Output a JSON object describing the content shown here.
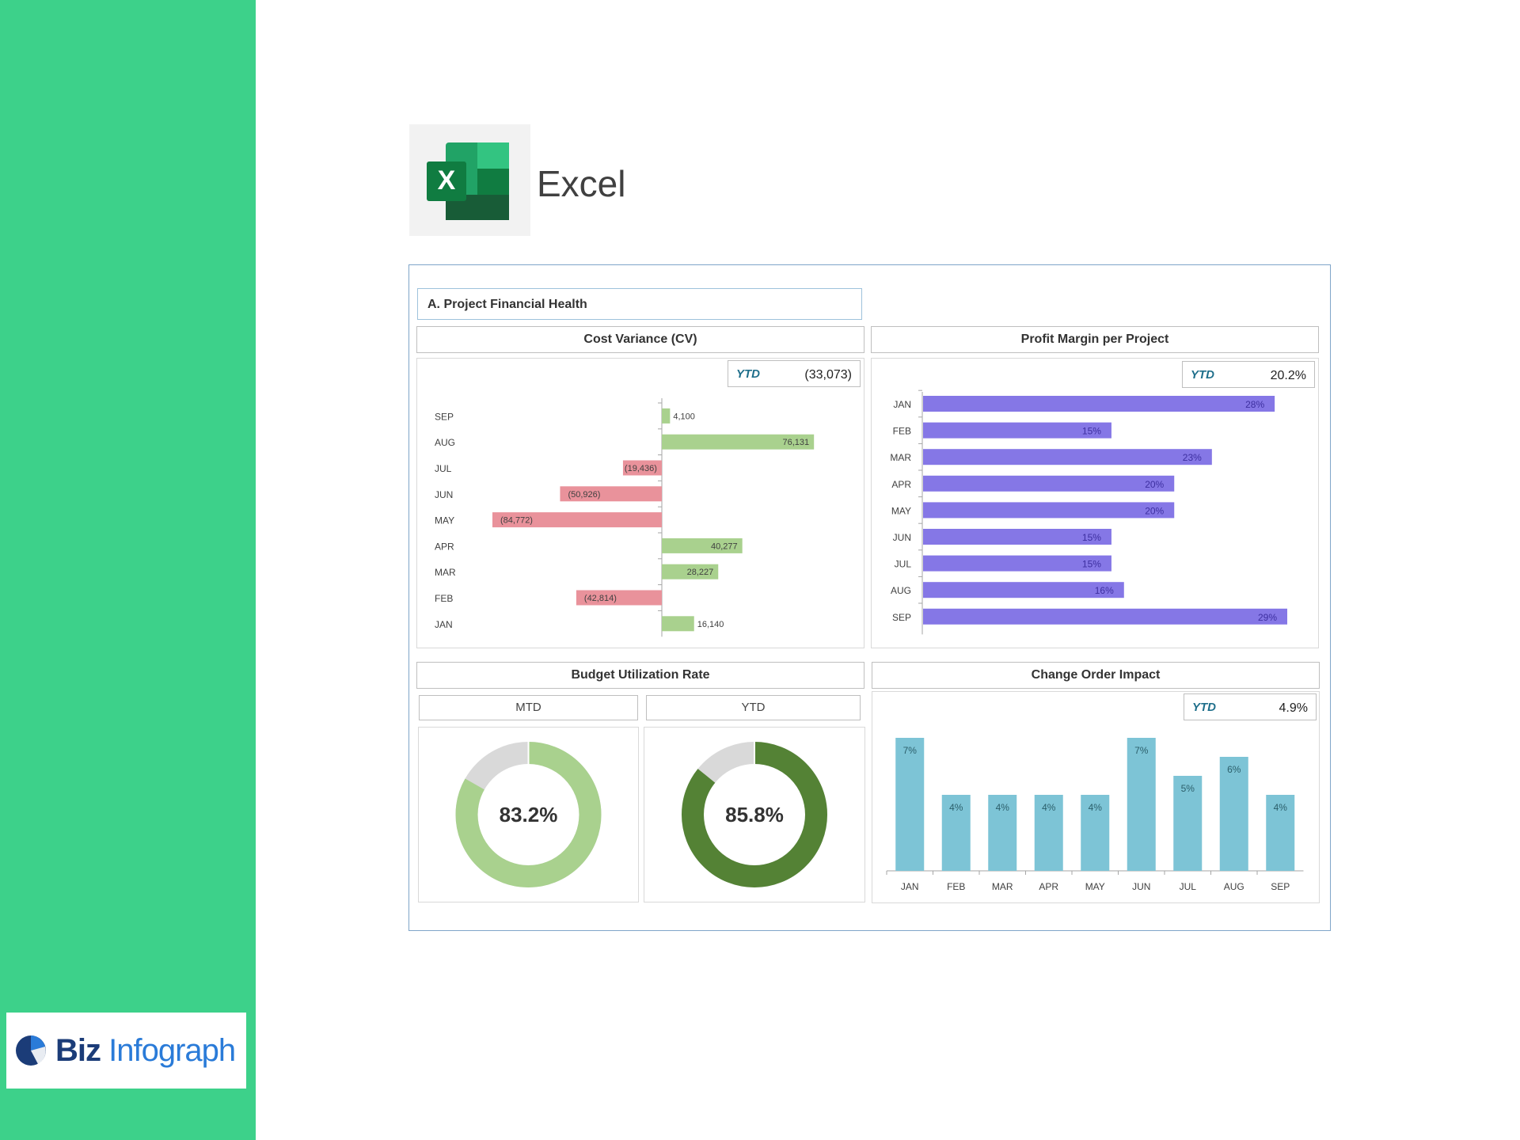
{
  "brand": {
    "name_part1": "Biz",
    "name_part2": "Infograph"
  },
  "app": {
    "logo_letter": "X",
    "name": "Excel"
  },
  "dashboard": {
    "section_title": "A. Project Financial Health",
    "cost_variance": {
      "title": "Cost Variance (CV)",
      "ytd_label": "YTD",
      "ytd_value": "(33,073)"
    },
    "profit_margin": {
      "title": "Profit Margin per Project",
      "ytd_label": "YTD",
      "ytd_value": "20.2%"
    },
    "budget_utilization": {
      "title": "Budget Utilization Rate",
      "mtd_label": "MTD",
      "ytd_label": "YTD",
      "mtd_value": "83.2%",
      "ytd_value": "85.8%"
    },
    "change_order": {
      "title": "Change Order Impact",
      "ytd_label": "YTD",
      "ytd_value": "4.9%"
    }
  },
  "colors": {
    "positive": "#a9d18e",
    "negative": "#e9929b",
    "purple": "#8577e6",
    "teal": "#7dc4d6",
    "donut_light": "#a9d18e",
    "donut_dark": "#548235",
    "donut_rest": "#d9d9d9"
  },
  "chart_data": [
    {
      "type": "bar",
      "orientation": "horizontal",
      "title": "Cost Variance (CV)",
      "categories": [
        "SEP",
        "AUG",
        "JUL",
        "JUN",
        "MAY",
        "APR",
        "MAR",
        "FEB",
        "JAN"
      ],
      "values": [
        4100,
        76131,
        -19436,
        -50926,
        -84772,
        40277,
        28227,
        -42814,
        16140
      ],
      "labels": [
        "4,100",
        "76,131",
        "(19,436)",
        "(50,926)",
        "(84,772)",
        "40,277",
        "28,227",
        "(42,814)",
        "16,140"
      ]
    },
    {
      "type": "bar",
      "orientation": "horizontal",
      "title": "Profit Margin per Project",
      "categories": [
        "JAN",
        "FEB",
        "MAR",
        "APR",
        "MAY",
        "JUN",
        "JUL",
        "AUG",
        "SEP"
      ],
      "values": [
        28,
        15,
        23,
        20,
        20,
        15,
        15,
        16,
        29
      ],
      "labels": [
        "28%",
        "15%",
        "23%",
        "20%",
        "20%",
        "15%",
        "15%",
        "16%",
        "29%"
      ]
    },
    {
      "type": "pie",
      "title": "Budget Utilization Rate — MTD",
      "values": [
        83.2,
        16.8
      ],
      "center_label": "83.2%"
    },
    {
      "type": "pie",
      "title": "Budget Utilization Rate — YTD",
      "values": [
        85.8,
        14.2
      ],
      "center_label": "85.8%"
    },
    {
      "type": "bar",
      "title": "Change Order Impact",
      "categories": [
        "JAN",
        "FEB",
        "MAR",
        "APR",
        "MAY",
        "JUN",
        "JUL",
        "AUG",
        "SEP"
      ],
      "values": [
        7,
        4,
        4,
        4,
        4,
        7,
        5,
        6,
        4
      ],
      "labels": [
        "7%",
        "4%",
        "4%",
        "4%",
        "4%",
        "7%",
        "5%",
        "6%",
        "4%"
      ]
    }
  ]
}
